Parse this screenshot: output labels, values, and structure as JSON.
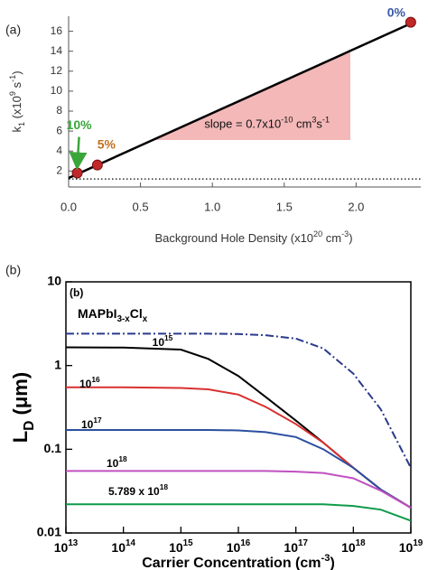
{
  "chart_data": [
    {
      "type": "scatter",
      "panel_label": "(a)",
      "x_label": [
        {
          "text": "Background Hole Density (x10"
        },
        {
          "text": "20",
          "pos": "super"
        },
        {
          "text": " cm"
        },
        {
          "text": "-3",
          "pos": "super"
        },
        {
          "text": ")"
        }
      ],
      "y_label": [
        {
          "text": "k"
        },
        {
          "text": "1",
          "pos": "sub"
        },
        {
          "text": " (x10"
        },
        {
          "text": "9",
          "pos": "super"
        },
        {
          "text": " s"
        },
        {
          "text": "-1",
          "pos": "super"
        },
        {
          "text": ")"
        }
      ],
      "annotation": [
        {
          "text": "slope = 0.7x10"
        },
        {
          "text": "-10",
          "pos": "super"
        },
        {
          "text": " cm"
        },
        {
          "text": "3",
          "pos": "super"
        },
        {
          "text": "s"
        },
        {
          "text": "-1",
          "pos": "super"
        }
      ],
      "x": [
        0.06,
        0.2,
        2.38
      ],
      "values": [
        1.8,
        2.6,
        16.9
      ],
      "color": "#c0282a",
      "point_labels": [
        "10%",
        "5%",
        "0%"
      ],
      "point_label_colors": [
        "#3aa63a",
        "#c07020",
        "#3a5aa8"
      ],
      "fit": {
        "x": [
          0,
          2.4
        ],
        "values": [
          1.3,
          16.9
        ],
        "color": "#000000"
      },
      "reference_line": 1.2,
      "reference_line_style": "dotted",
      "shade": {
        "x": [
          0.58,
          1.96,
          1.96
        ],
        "values": [
          5.1,
          5.1,
          14.0
        ],
        "color": "#f4b8b8"
      },
      "xlim": [
        0,
        2.45
      ],
      "ylim": [
        0.4,
        17.5
      ],
      "xticks": [
        {
          "value": 0,
          "label": "0.0"
        },
        0.5,
        {
          "value": 1,
          "label": "1.0"
        },
        1.5,
        {
          "value": 2,
          "label": "2.0"
        }
      ],
      "yticks": [
        2,
        4,
        6,
        8,
        10,
        12,
        14,
        16
      ]
    },
    {
      "type": "line",
      "panel_label": "(b)",
      "inner_label": "(b)",
      "x_label": [
        {
          "text": "Carrier Concentration (cm"
        },
        {
          "text": "-3",
          "pos": "super"
        },
        {
          "text": ")"
        }
      ],
      "y_label": [
        {
          "text": "L"
        },
        {
          "text": "D",
          "pos": "sub"
        },
        {
          "text": " (μm)"
        }
      ],
      "xscale": "log",
      "yscale": "log",
      "x": [
        10000000000000.0,
        100000000000000.0,
        1000000000000000.0,
        3000000000000000.0,
        1e+16,
        3e+16,
        1e+17,
        3e+17,
        1e+18,
        3e+18,
        1e+19
      ],
      "series": [
        {
          "name": "MAPbI3-xClx",
          "color": "#2a3a8c",
          "style": "dashdot",
          "values": [
            2.4,
            2.4,
            2.4,
            2.4,
            2.38,
            2.3,
            2.1,
            1.6,
            0.8,
            0.3,
            0.06
          ]
        },
        {
          "name": "1015",
          "color": "#000000",
          "style": "solid",
          "values": [
            1.65,
            1.64,
            1.55,
            1.2,
            0.75,
            0.42,
            0.22,
            0.12,
            0.06,
            0.033,
            0.02
          ]
        },
        {
          "name": "1016",
          "color": "#d93030",
          "style": "solid",
          "values": [
            0.55,
            0.55,
            0.54,
            0.52,
            0.45,
            0.32,
            0.2,
            0.12,
            0.06,
            0.033,
            0.02
          ]
        },
        {
          "name": "1017",
          "color": "#2b4fa0",
          "style": "solid",
          "values": [
            0.17,
            0.17,
            0.17,
            0.17,
            0.168,
            0.16,
            0.14,
            0.1,
            0.06,
            0.033,
            0.02
          ]
        },
        {
          "name": "1018",
          "color": "#c050c0",
          "style": "solid",
          "values": [
            0.055,
            0.055,
            0.055,
            0.055,
            0.055,
            0.055,
            0.054,
            0.052,
            0.045,
            0.032,
            0.02
          ]
        },
        {
          "name": "5.789 x 1018",
          "color": "#0f9a4a",
          "style": "solid",
          "values": [
            0.022,
            0.022,
            0.022,
            0.022,
            0.022,
            0.022,
            0.022,
            0.022,
            0.021,
            0.019,
            0.014
          ]
        }
      ],
      "xlim": [
        10000000000000.0,
        1e+19
      ],
      "ylim": [
        0.01,
        10
      ],
      "xticks": [
        {
          "value": 10000000000000.0,
          "label": "1013"
        },
        {
          "value": 100000000000000.0,
          "label": "1014"
        },
        {
          "value": 1000000000000000.0,
          "label": "1015"
        },
        {
          "value": 1e+16,
          "label": "1016"
        },
        {
          "value": 1e+17,
          "label": "1017"
        },
        {
          "value": 1e+18,
          "label": "1018"
        },
        {
          "value": 1e+19,
          "label": "1019"
        }
      ],
      "yticks": [
        0.01,
        0.1,
        1,
        10
      ]
    }
  ]
}
